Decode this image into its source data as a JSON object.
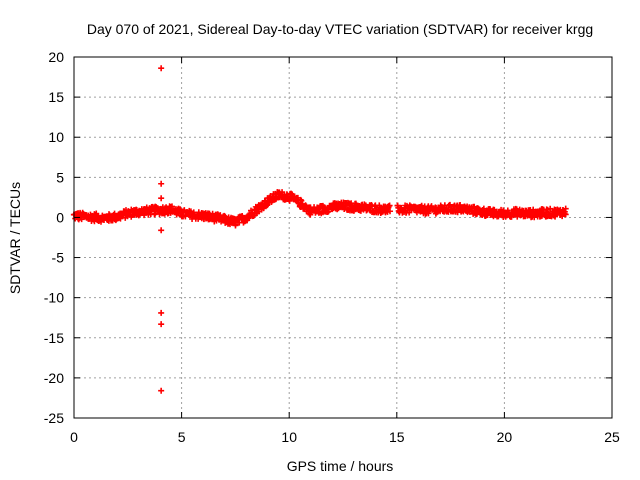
{
  "chart_data": {
    "type": "scatter",
    "title": "Day 070 of 2021, Sidereal Day-to-day VTEC variation (SDTVAR) for receiver krgg",
    "xlabel": "GPS time / hours",
    "ylabel": "SDTVAR / TECUs",
    "xlim": [
      0,
      25
    ],
    "ylim": [
      -25,
      20
    ],
    "xticks": [
      0,
      5,
      10,
      15,
      20,
      25
    ],
    "yticks": [
      -25,
      -20,
      -15,
      -10,
      -5,
      0,
      5,
      10,
      15,
      20
    ],
    "grid": true,
    "marker": "plus",
    "color": "#ff0000",
    "trend": {
      "x": [
        0,
        0.5,
        1,
        1.5,
        2,
        2.5,
        3,
        3.5,
        4,
        4.5,
        5,
        5.5,
        6,
        6.5,
        7,
        7.5,
        8,
        8.5,
        9,
        9.5,
        10,
        10.5,
        11,
        11.5,
        12,
        12.5,
        13,
        13.5,
        14,
        14.5,
        15,
        15.5,
        16,
        16.5,
        17,
        17.5,
        18,
        18.5,
        19,
        19.5,
        20,
        20.5,
        21,
        21.5,
        22,
        22.5,
        22.9
      ],
      "y": [
        0.2,
        0.1,
        0.0,
        -0.1,
        0.1,
        0.5,
        0.7,
        0.8,
        0.9,
        1.0,
        0.5,
        0.3,
        0.2,
        0.0,
        -0.3,
        -0.6,
        0.0,
        1.0,
        2.0,
        2.8,
        2.6,
        1.8,
        0.8,
        1.0,
        1.3,
        1.4,
        1.3,
        1.2,
        1.1,
        1.0,
        1.0,
        1.0,
        1.0,
        0.9,
        1.0,
        1.1,
        1.1,
        0.9,
        0.7,
        0.5,
        0.5,
        0.6,
        0.5,
        0.5,
        0.6,
        0.6,
        0.7
      ],
      "spread": 0.5
    },
    "gaps": [
      [
        14.7,
        15.0
      ]
    ],
    "outliers": [
      {
        "x": 4.05,
        "y": 18.6
      },
      {
        "x": 4.05,
        "y": 4.2
      },
      {
        "x": 4.05,
        "y": 2.4
      },
      {
        "x": 4.05,
        "y": -1.6
      },
      {
        "x": 4.05,
        "y": -11.9
      },
      {
        "x": 4.05,
        "y": -13.3
      },
      {
        "x": 4.05,
        "y": -21.6
      }
    ]
  }
}
